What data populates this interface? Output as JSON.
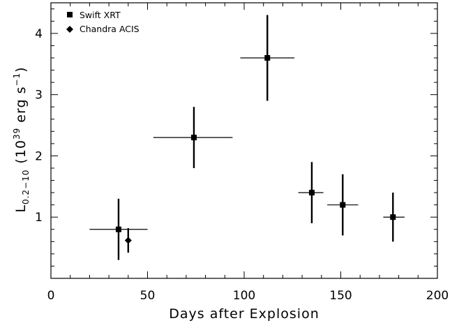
{
  "chart_data": {
    "type": "scatter",
    "xlabel": "Days after Explosion",
    "ylabel": {
      "base": "L",
      "sub": "0.2−10",
      "paren_open": "(10",
      "exp": "39",
      "unit": " erg s",
      "unit_exp": "−1",
      "paren_close": ")"
    },
    "xlim": [
      0,
      200
    ],
    "ylim": [
      0,
      4.5
    ],
    "x_ticks": [
      0,
      50,
      100,
      150,
      200
    ],
    "x_tick_labels": [
      "0",
      "50",
      "100",
      "150",
      "200"
    ],
    "y_ticks": [
      1,
      2,
      3,
      4
    ],
    "y_tick_labels": [
      "1",
      "2",
      "3",
      "4"
    ],
    "legend_position": "top-left",
    "series": [
      {
        "name": "Swift XRT",
        "marker": "square",
        "points": [
          {
            "x": 35,
            "y": 0.8,
            "xmin": 20,
            "xmax": 50,
            "ymin": 0.3,
            "ymax": 1.3
          },
          {
            "x": 74,
            "y": 2.3,
            "xmin": 53,
            "xmax": 94,
            "ymin": 1.8,
            "ymax": 2.8
          },
          {
            "x": 112,
            "y": 3.6,
            "xmin": 98,
            "xmax": 126,
            "ymin": 2.9,
            "ymax": 4.3
          },
          {
            "x": 135,
            "y": 1.4,
            "xmin": 128,
            "xmax": 141,
            "ymin": 0.9,
            "ymax": 1.9
          },
          {
            "x": 151,
            "y": 1.2,
            "xmin": 143,
            "xmax": 159,
            "ymin": 0.7,
            "ymax": 1.7
          },
          {
            "x": 177,
            "y": 1.0,
            "xmin": 172,
            "xmax": 183,
            "ymin": 0.6,
            "ymax": 1.4
          }
        ]
      },
      {
        "name": "Chandra ACIS",
        "marker": "diamond",
        "points": [
          {
            "x": 40,
            "y": 0.62,
            "ymin": 0.42,
            "ymax": 0.82
          }
        ]
      }
    ]
  }
}
